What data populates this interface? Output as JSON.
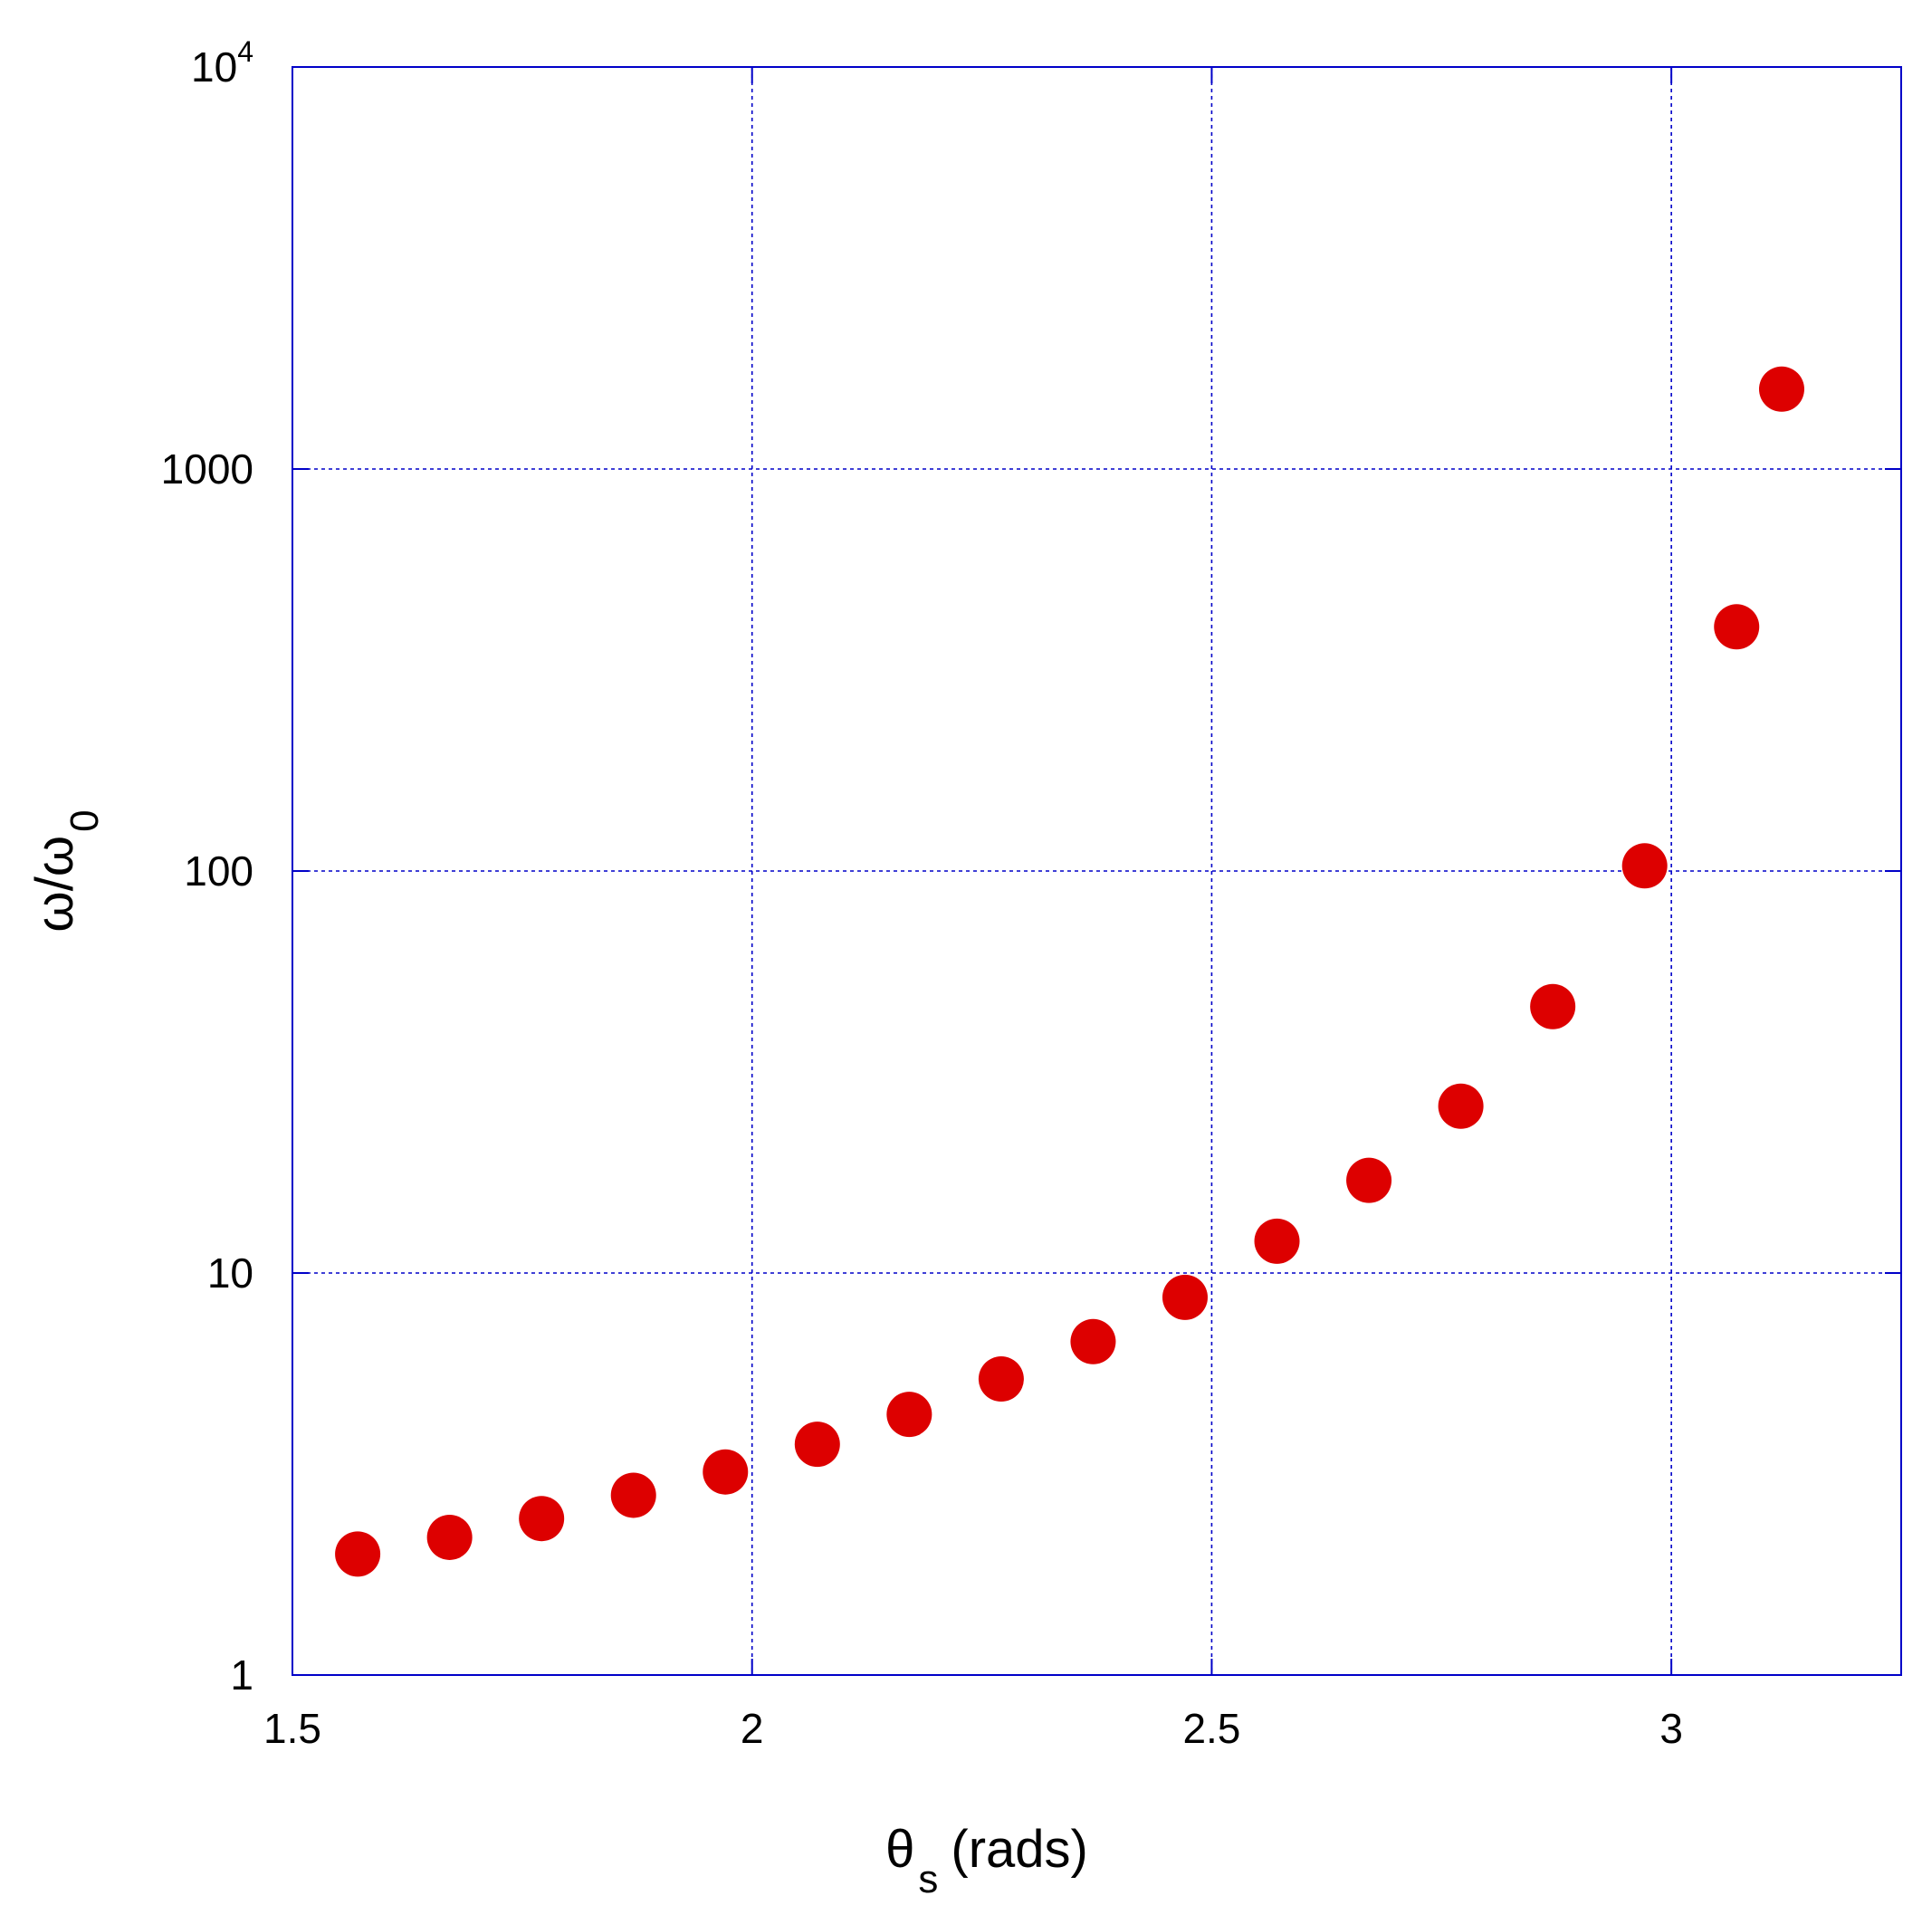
{
  "chart_data": {
    "type": "scatter",
    "x_scale": "linear",
    "y_scale": "log",
    "xlim": [
      1.5,
      3.25
    ],
    "ylim": [
      1,
      10000
    ],
    "grid": true,
    "colors": {
      "frame": "#0000c8",
      "grid": "#0000c8",
      "marker": "#dd0000"
    },
    "xlabel": {
      "main": "θ",
      "sub": "s",
      "rest": "(rads)"
    },
    "ylabel": {
      "main": "ω/ω",
      "sub": "0"
    },
    "x_ticks": [
      {
        "value": 1.5,
        "label": "1.5"
      },
      {
        "value": 2,
        "label": "2"
      },
      {
        "value": 2.5,
        "label": "2.5"
      },
      {
        "value": 3,
        "label": "3"
      }
    ],
    "y_ticks": [
      {
        "value": 1,
        "label": "1"
      },
      {
        "value": 10,
        "label": "10"
      },
      {
        "value": 100,
        "label": "100"
      },
      {
        "value": 1000,
        "label": "1000"
      },
      {
        "value": 10000,
        "label": "10",
        "sup": "4"
      }
    ],
    "series": [
      {
        "x": [
          1.571,
          1.671,
          1.771,
          1.871,
          1.971,
          2.071,
          2.171,
          2.271,
          2.371,
          2.471,
          2.571,
          2.671,
          2.771,
          2.871,
          2.971,
          3.071,
          3.12
        ],
        "y": [
          2.0,
          2.2,
          2.45,
          2.8,
          3.2,
          3.75,
          4.45,
          5.45,
          6.75,
          8.7,
          12.0,
          17.0,
          26.0,
          46.0,
          103.0,
          405.0,
          1580.0
        ]
      }
    ]
  }
}
